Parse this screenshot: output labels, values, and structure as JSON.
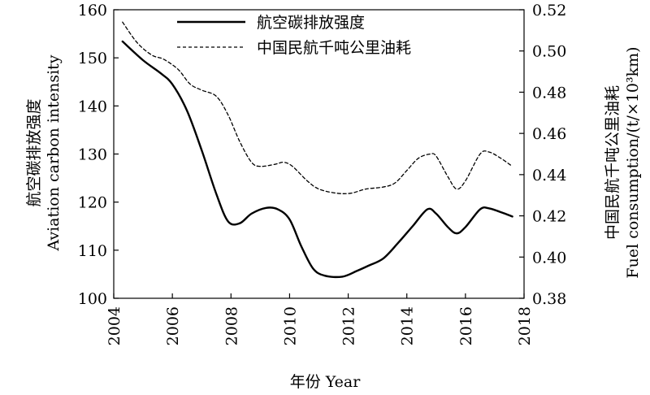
{
  "chart_data": {
    "type": "line",
    "xlabel": "年份 Year",
    "ylabel_left_cn": "航空碳排放强度",
    "ylabel_left_en": "Aviation carbon intensity",
    "ylabel_right_cn": "中国民航千吨公里油耗",
    "ylabel_right_en": "Fuel consumption/(t/×10³km)",
    "xlim": [
      2004,
      2018
    ],
    "ylim_left": [
      100,
      160
    ],
    "ylim_right": [
      0.38,
      0.52
    ],
    "x_ticks": [
      "2004",
      "2006",
      "2008",
      "2010",
      "2012",
      "2014",
      "2016",
      "2018"
    ],
    "y_left_ticks": [
      "100",
      "110",
      "120",
      "130",
      "140",
      "150",
      "160"
    ],
    "y_right_ticks": [
      "0.38",
      "0.40",
      "0.42",
      "0.44",
      "0.46",
      "0.48",
      "0.50",
      "0.52"
    ],
    "legend_position": "top-center",
    "series": [
      {
        "name": "航空碳排放强度",
        "axis": "left",
        "style": "solid",
        "color": "#000000",
        "points": [
          [
            2004.3,
            153.4
          ],
          [
            2005.0,
            149.5
          ],
          [
            2005.6,
            146.8
          ],
          [
            2006.0,
            144.5
          ],
          [
            2006.5,
            139.0
          ],
          [
            2007.0,
            130.8
          ],
          [
            2007.5,
            121.7
          ],
          [
            2007.9,
            116.0
          ],
          [
            2008.3,
            115.6
          ],
          [
            2008.7,
            117.6
          ],
          [
            2009.2,
            118.8
          ],
          [
            2009.6,
            118.5
          ],
          [
            2010.0,
            116.4
          ],
          [
            2010.4,
            110.8
          ],
          [
            2010.8,
            106.2
          ],
          [
            2011.2,
            104.7
          ],
          [
            2011.8,
            104.5
          ],
          [
            2012.3,
            105.7
          ],
          [
            2012.7,
            106.8
          ],
          [
            2013.2,
            108.3
          ],
          [
            2013.7,
            111.5
          ],
          [
            2014.2,
            115.0
          ],
          [
            2014.7,
            118.5
          ],
          [
            2015.0,
            117.6
          ],
          [
            2015.4,
            114.8
          ],
          [
            2015.7,
            113.5
          ],
          [
            2016.0,
            114.8
          ],
          [
            2016.5,
            118.5
          ],
          [
            2016.8,
            118.7
          ],
          [
            2017.3,
            117.7
          ],
          [
            2017.6,
            117.0
          ]
        ]
      },
      {
        "name": "中国民航千吨公里油耗",
        "axis": "right",
        "style": "dashed",
        "color": "#000000",
        "points": [
          [
            2004.3,
            0.514
          ],
          [
            2004.8,
            0.504
          ],
          [
            2005.3,
            0.498
          ],
          [
            2005.7,
            0.496
          ],
          [
            2006.2,
            0.491
          ],
          [
            2006.6,
            0.484
          ],
          [
            2007.0,
            0.481
          ],
          [
            2007.5,
            0.478
          ],
          [
            2007.9,
            0.469
          ],
          [
            2008.3,
            0.456
          ],
          [
            2008.7,
            0.446
          ],
          [
            2009.0,
            0.444
          ],
          [
            2009.5,
            0.445
          ],
          [
            2009.8,
            0.446
          ],
          [
            2010.1,
            0.444
          ],
          [
            2010.6,
            0.437
          ],
          [
            2011.0,
            0.433
          ],
          [
            2011.6,
            0.431
          ],
          [
            2012.1,
            0.431
          ],
          [
            2012.6,
            0.433
          ],
          [
            2013.2,
            0.434
          ],
          [
            2013.6,
            0.436
          ],
          [
            2014.0,
            0.442
          ],
          [
            2014.4,
            0.448
          ],
          [
            2014.8,
            0.45
          ],
          [
            2015.0,
            0.449
          ],
          [
            2015.4,
            0.439
          ],
          [
            2015.7,
            0.433
          ],
          [
            2016.0,
            0.437
          ],
          [
            2016.5,
            0.45
          ],
          [
            2016.8,
            0.451
          ],
          [
            2017.2,
            0.448
          ],
          [
            2017.6,
            0.444
          ]
        ]
      }
    ]
  }
}
